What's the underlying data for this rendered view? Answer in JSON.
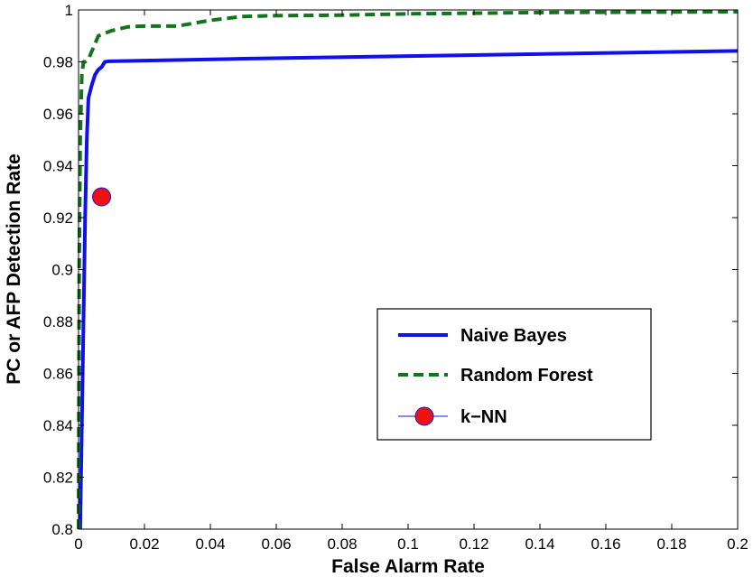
{
  "chart_data": {
    "type": "line",
    "title": "",
    "xlabel": "False Alarm Rate",
    "ylabel": "PC or AFP Detection Rate",
    "xlim": [
      0,
      0.2
    ],
    "ylim": [
      0.8,
      1
    ],
    "grid": false,
    "legend_position": "lower-right",
    "x_ticks": [
      0,
      0.02,
      0.04,
      0.06,
      0.08,
      0.1,
      0.12,
      0.14,
      0.16,
      0.18,
      0.2
    ],
    "x_tick_labels": [
      "0",
      "0.02",
      "0.04",
      "0.06",
      "0.08",
      "0.1",
      "0.12",
      "0.14",
      "0.16",
      "0.18",
      "0.2"
    ],
    "y_ticks": [
      0.8,
      0.82,
      0.84,
      0.86,
      0.88,
      0.9,
      0.92,
      0.94,
      0.96,
      0.98,
      1
    ],
    "y_tick_labels": [
      "0.8",
      "0.82",
      "0.84",
      "0.86",
      "0.88",
      "0.9",
      "0.92",
      "0.94",
      "0.96",
      "0.98",
      "1"
    ],
    "series": [
      {
        "name": "Naive Bayes",
        "style": "solid",
        "color": "#1010ee",
        "x": [
          0.0005,
          0.001,
          0.0015,
          0.002,
          0.0025,
          0.003,
          0.004,
          0.005,
          0.006,
          0.007,
          0.008,
          0.009,
          0.05,
          0.1,
          0.15,
          0.2
        ],
        "y": [
          0.8,
          0.84,
          0.88,
          0.92,
          0.95,
          0.966,
          0.971,
          0.975,
          0.977,
          0.978,
          0.98,
          0.9802,
          0.9812,
          0.9822,
          0.9832,
          0.9842
        ]
      },
      {
        "name": "Random Forest",
        "style": "dashed",
        "color": "#11751a",
        "x": [
          0,
          0.0002,
          0.0005,
          0.001,
          0.0015,
          0.002,
          0.003,
          0.004,
          0.005,
          0.006,
          0.008,
          0.01,
          0.015,
          0.02,
          0.03,
          0.04,
          0.05,
          0.06,
          0.08,
          0.1,
          0.14,
          0.2
        ],
        "y": [
          0.8,
          0.9,
          0.95,
          0.975,
          0.98,
          0.98,
          0.981,
          0.984,
          0.987,
          0.99,
          0.991,
          0.992,
          0.9935,
          0.9938,
          0.9938,
          0.996,
          0.9975,
          0.9978,
          0.998,
          0.9985,
          0.999,
          0.9993
        ]
      },
      {
        "name": "k−NN",
        "style": "marker",
        "color": "#ee1111",
        "x": [
          0.007
        ],
        "y": [
          0.928
        ]
      }
    ]
  }
}
